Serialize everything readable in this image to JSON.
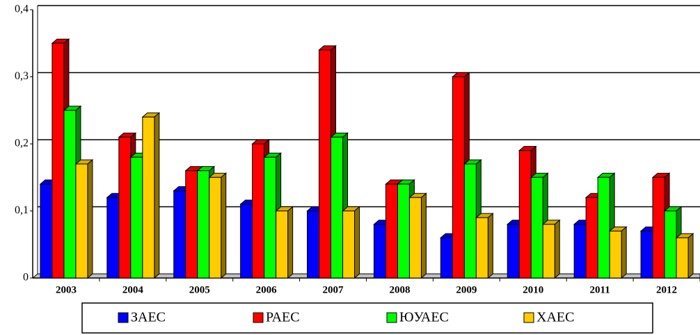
{
  "chart_data": {
    "type": "bar3d",
    "categories": [
      "2003",
      "2004",
      "2005",
      "2006",
      "2007",
      "2008",
      "2009",
      "2010",
      "2011",
      "2012"
    ],
    "series": [
      {
        "name": "ЗАЕС",
        "color": "#0000ff",
        "values": [
          0.14,
          0.12,
          0.13,
          0.11,
          0.1,
          0.08,
          0.06,
          0.08,
          0.08,
          0.07
        ]
      },
      {
        "name": "РАЕС",
        "color": "#ff0000",
        "values": [
          0.35,
          0.21,
          0.16,
          0.2,
          0.34,
          0.14,
          0.3,
          0.19,
          0.12,
          0.15
        ]
      },
      {
        "name": "ЮУАЕС",
        "color": "#00ff00",
        "values": [
          0.25,
          0.18,
          0.16,
          0.18,
          0.21,
          0.14,
          0.17,
          0.15,
          0.15,
          0.1
        ]
      },
      {
        "name": "ХАЕС",
        "color": "#ffcc00",
        "values": [
          0.17,
          0.24,
          0.15,
          0.1,
          0.1,
          0.12,
          0.09,
          0.08,
          0.07,
          0.06
        ]
      }
    ],
    "ylim": [
      0,
      0.4
    ],
    "yticks": [
      0,
      {
        "value": 0.1,
        "label": "0,1"
      },
      {
        "value": 0.2,
        "label": "0,2"
      },
      {
        "value": 0.3,
        "label": "0,3"
      },
      {
        "value": 0.4,
        "label": "0,4"
      }
    ],
    "grid": true,
    "legend": "bottom"
  }
}
